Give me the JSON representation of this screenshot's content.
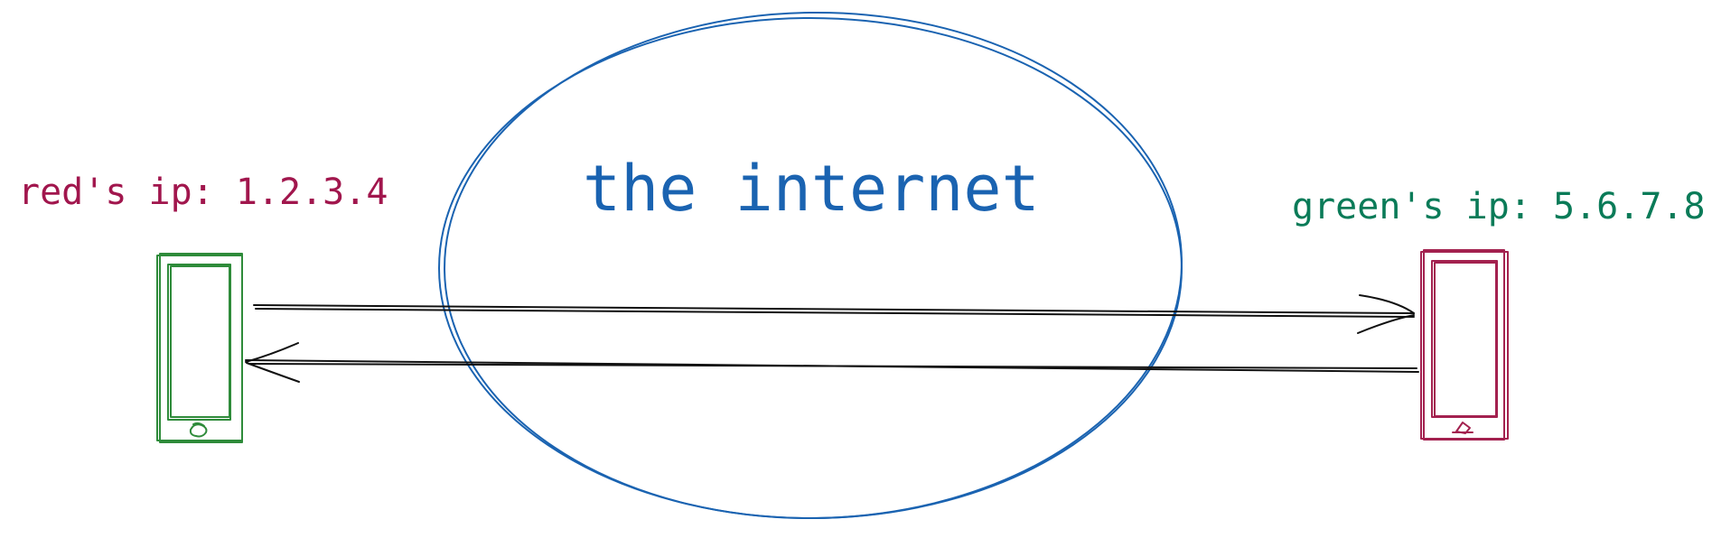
{
  "labels": {
    "red_ip": "red's ip: 1.2.3.4",
    "green_ip": "green's ip: 5.6.7.8",
    "internet": "the internet"
  },
  "colors": {
    "red": "#a1164d",
    "green": "#0a7b58",
    "phone_green": "#2e8b3a",
    "phone_red": "#a3214f",
    "internet": "#1a63b1",
    "arrow": "#111111"
  },
  "icons": {
    "left_device": "phone-icon",
    "right_device": "phone-icon",
    "network": "cloud-ellipse"
  }
}
